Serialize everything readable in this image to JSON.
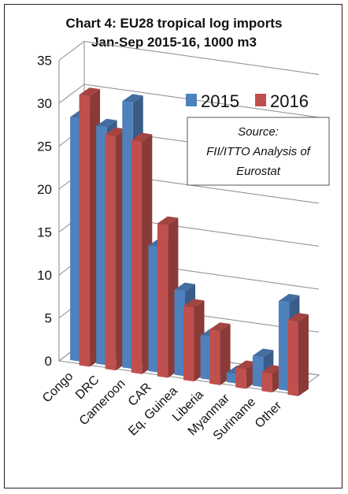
{
  "chart_data": {
    "type": "bar",
    "title": "Chart 4: EU28 tropical log imports",
    "subtitle": "Jan-Sep 2015-16, 1000 m3",
    "categories": [
      "Congo",
      "DRC",
      "Cameroon",
      "CAR",
      "Eq. Guinea",
      "Liberia",
      "Myanmar",
      "Suriname",
      "Other"
    ],
    "series": [
      {
        "name": "2015",
        "color": "#4f81bd",
        "values": [
          28.3,
          27.7,
          31.0,
          14.6,
          9.9,
          5.0,
          1.1,
          3.5,
          10.3
        ]
      },
      {
        "name": "2016",
        "color": "#c0504d",
        "values": [
          31.5,
          27.3,
          27.1,
          17.8,
          8.6,
          6.3,
          2.3,
          2.2,
          8.7
        ]
      }
    ],
    "yticks": [
      "0",
      "5",
      "10",
      "15",
      "20",
      "25",
      "30",
      "35"
    ],
    "ylim": [
      0,
      35
    ],
    "grid": true,
    "legend_position": "top-right",
    "annotation": [
      "Source:",
      "FII/ITTO Analysis of",
      "Eurostat"
    ]
  }
}
